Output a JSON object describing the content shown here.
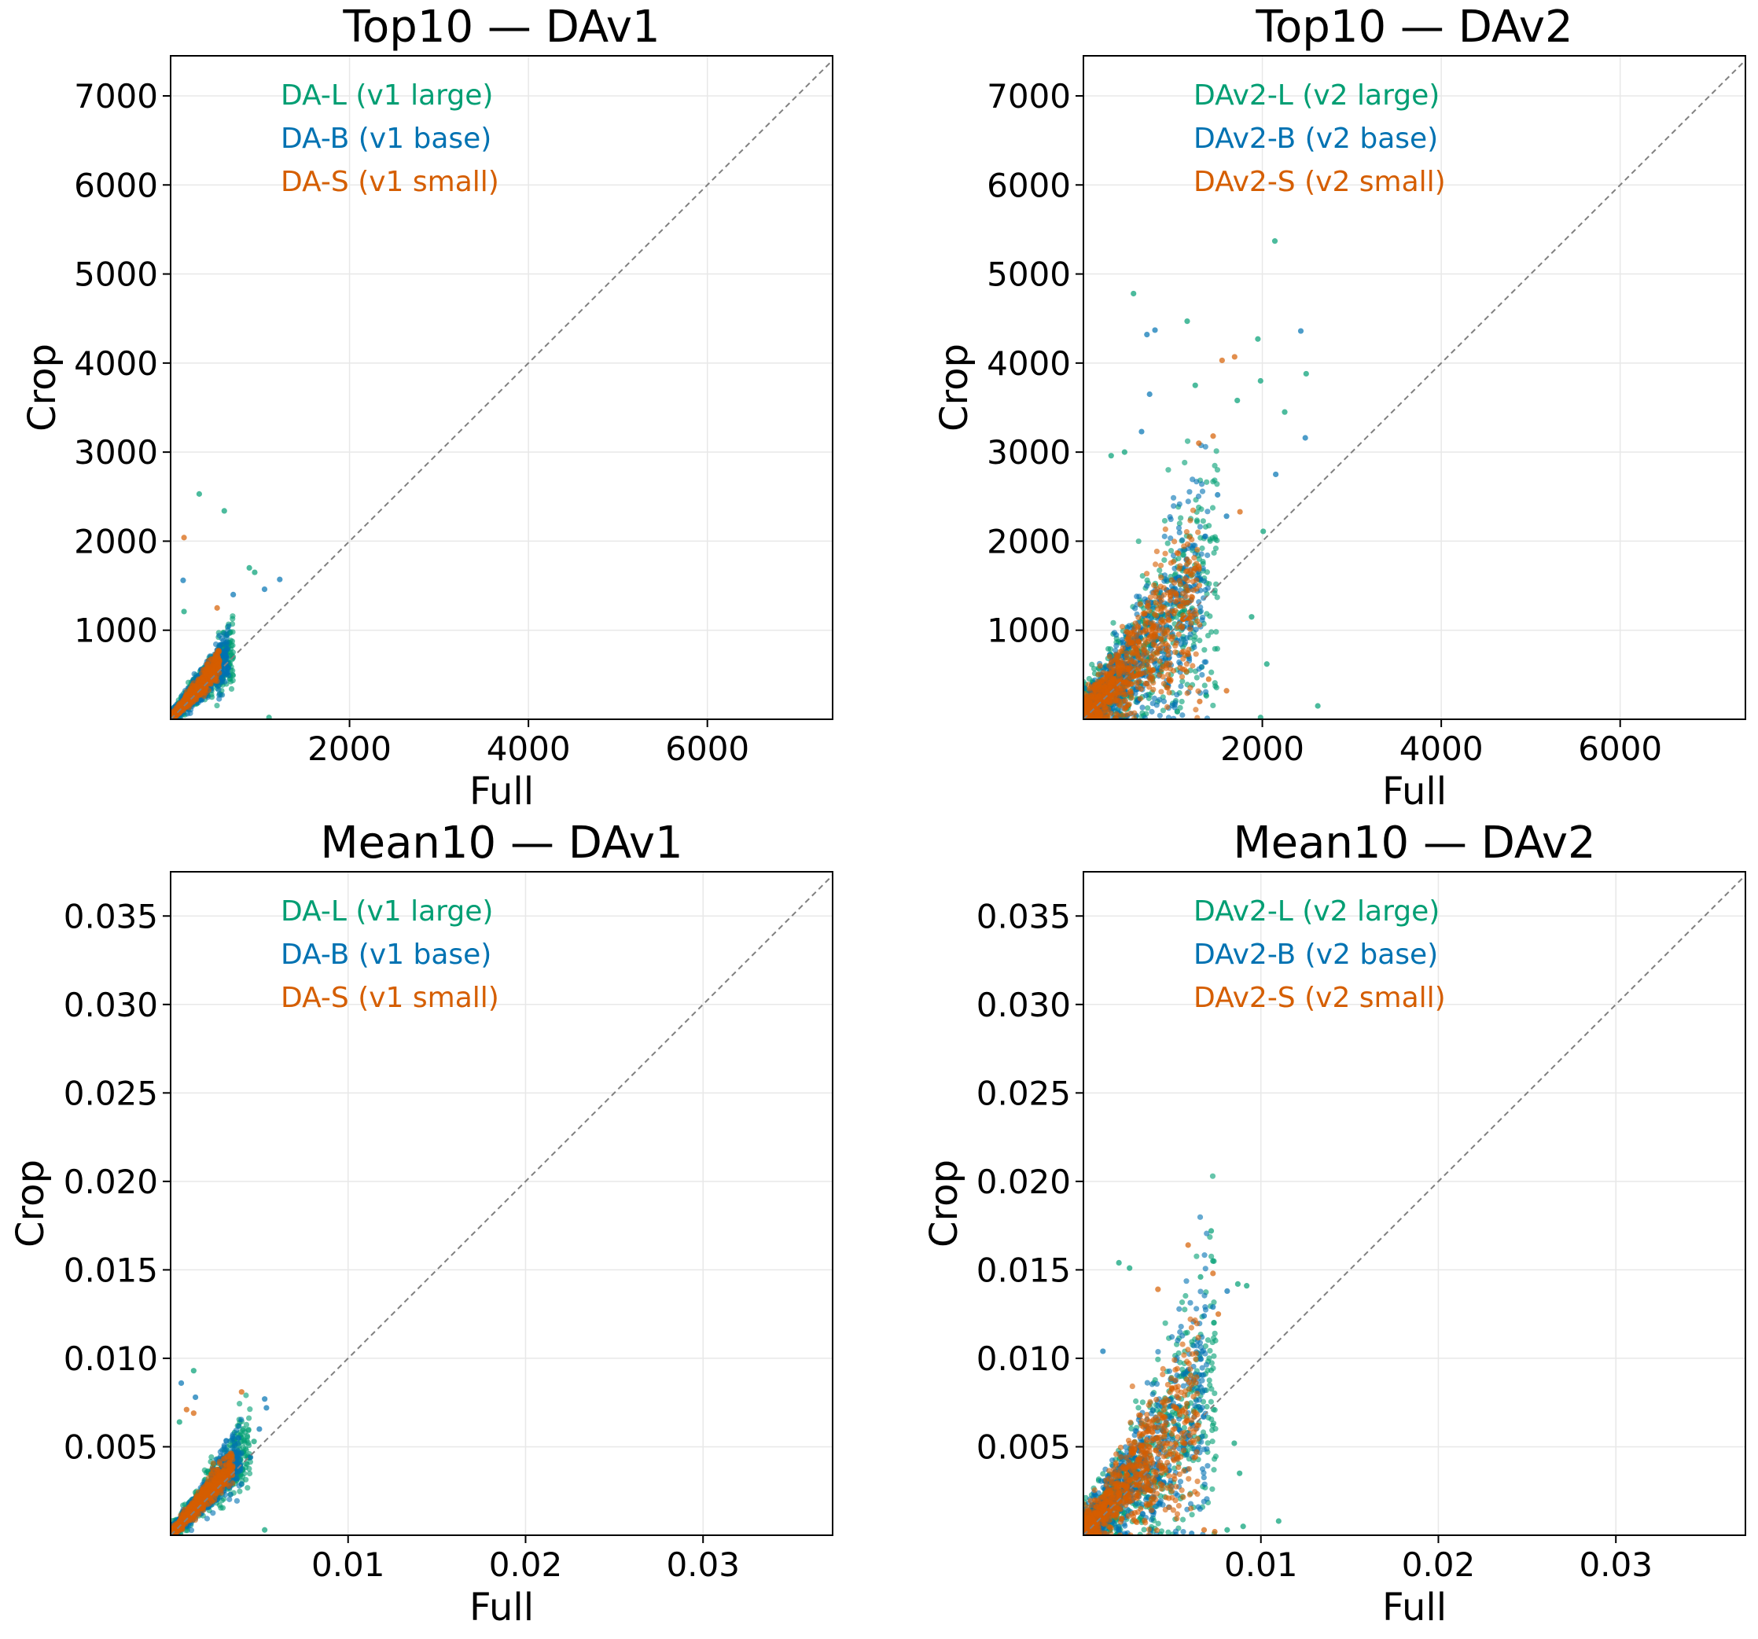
{
  "colors": {
    "large": "#009E73",
    "base": "#0072B2",
    "small": "#D55E00",
    "diagonal": "#808080",
    "grid": "#e8e8e8"
  },
  "chart_data": [
    {
      "type": "scatter",
      "title": "Top10 — DAv1",
      "xlabel": "Full",
      "ylabel": "Crop",
      "xlim": [
        0,
        7400
      ],
      "ylim": [
        0,
        7450
      ],
      "xticks": [
        2000,
        4000,
        6000
      ],
      "xtick_labels": [
        "2000",
        "4000",
        "6000"
      ],
      "yticks": [
        1000,
        2000,
        3000,
        4000,
        5000,
        6000,
        7000
      ],
      "ytick_labels": [
        "1000",
        "2000",
        "3000",
        "4000",
        "5000",
        "6000",
        "7000"
      ],
      "grid": true,
      "diagonal": "y = x (dashed)",
      "legend_position": "top-left",
      "series": [
        {
          "name": "DA-L (v1 large)",
          "color_key": "large",
          "cluster": {
            "xmax": 700,
            "spread": 0.45
          },
          "outliers": [
            [
              320,
              2530
            ],
            [
              600,
              2340
            ],
            [
              150,
              1210
            ],
            [
              880,
              1700
            ],
            [
              940,
              1650
            ],
            [
              1100,
              20
            ]
          ]
        },
        {
          "name": "DA-B (v1 base)",
          "color_key": "base",
          "cluster": {
            "xmax": 650,
            "spread": 0.42
          },
          "outliers": [
            [
              140,
              1560
            ],
            [
              1220,
              1570
            ],
            [
              1050,
              1460
            ],
            [
              700,
              1400
            ]
          ]
        },
        {
          "name": "DA-S (v1 small)",
          "color_key": "small",
          "cluster": {
            "xmax": 550,
            "spread": 0.28
          },
          "outliers": [
            [
              150,
              2040
            ],
            [
              520,
              1250
            ]
          ]
        }
      ]
    },
    {
      "type": "scatter",
      "title": "Top10 — DAv2",
      "xlabel": "Full",
      "ylabel": "Crop",
      "xlim": [
        0,
        7400
      ],
      "ylim": [
        0,
        7450
      ],
      "xticks": [
        2000,
        4000,
        6000
      ],
      "xtick_labels": [
        "2000",
        "4000",
        "6000"
      ],
      "yticks": [
        1000,
        2000,
        3000,
        4000,
        5000,
        6000,
        7000
      ],
      "ytick_labels": [
        "1000",
        "2000",
        "3000",
        "4000",
        "5000",
        "6000",
        "7000"
      ],
      "grid": true,
      "diagonal": "y = x (dashed)",
      "legend_position": "top-left",
      "series": [
        {
          "name": "DAv2-L (v2 large)",
          "color_key": "large",
          "cluster": {
            "xmax": 1500,
            "spread": 0.9
          },
          "outliers": [
            [
              2140,
              5370
            ],
            [
              560,
              4780
            ],
            [
              1160,
              4470
            ],
            [
              1950,
              4270
            ],
            [
              1250,
              3750
            ],
            [
              1980,
              3800
            ],
            [
              2250,
              3450
            ],
            [
              2490,
              3880
            ],
            [
              1720,
              3580
            ],
            [
              460,
              3000
            ],
            [
              310,
              2960
            ],
            [
              2010,
              2110
            ],
            [
              1880,
              1150
            ],
            [
              2050,
              620
            ],
            [
              2620,
              150
            ],
            [
              1980,
              20
            ]
          ]
        },
        {
          "name": "DAv2-B (v2 base)",
          "color_key": "base",
          "cluster": {
            "xmax": 1400,
            "spread": 0.85
          },
          "outliers": [
            [
              710,
              4320
            ],
            [
              800,
              4370
            ],
            [
              2430,
              4360
            ],
            [
              740,
              3650
            ],
            [
              2480,
              3160
            ],
            [
              2150,
              2750
            ],
            [
              650,
              3230
            ],
            [
              1500,
              2520
            ],
            [
              1600,
              2280
            ]
          ]
        },
        {
          "name": "DAv2-S (v2 small)",
          "color_key": "small",
          "cluster": {
            "xmax": 1300,
            "spread": 0.75
          },
          "outliers": [
            [
              1550,
              4030
            ],
            [
              1690,
              4070
            ],
            [
              1290,
              3100
            ],
            [
              1450,
              3180
            ],
            [
              1750,
              2330
            ],
            [
              1400,
              450
            ],
            [
              1600,
              320
            ],
            [
              1300,
              200
            ]
          ]
        }
      ]
    },
    {
      "type": "scatter",
      "title": "Mean10 — DAv1",
      "xlabel": "Full",
      "ylabel": "Crop",
      "xlim": [
        0,
        0.0373
      ],
      "ylim": [
        0,
        0.0375
      ],
      "xticks": [
        0.01,
        0.02,
        0.03
      ],
      "xtick_labels": [
        "0.01",
        "0.02",
        "0.03"
      ],
      "yticks": [
        0.005,
        0.01,
        0.015,
        0.02,
        0.025,
        0.03,
        0.035
      ],
      "ytick_labels": [
        "0.005",
        "0.010",
        "0.015",
        "0.020",
        "0.025",
        "0.030",
        "0.035"
      ],
      "grid": true,
      "diagonal": "y = x (dashed)",
      "legend_position": "top-left",
      "series": [
        {
          "name": "DA-L (v1 large)",
          "color_key": "large",
          "cluster": {
            "xmax": 0.0045,
            "spread": 0.42
          },
          "outliers": [
            [
              0.0013,
              0.0093
            ],
            [
              0.0005,
              0.0064
            ],
            [
              0.0036,
              0.0058
            ],
            [
              0.0047,
              0.0053
            ],
            [
              0.0053,
              0.0003
            ]
          ]
        },
        {
          "name": "DA-B (v1 base)",
          "color_key": "base",
          "cluster": {
            "xmax": 0.004,
            "spread": 0.4
          },
          "outliers": [
            [
              0.0053,
              0.0077
            ],
            [
              0.0054,
              0.0072
            ],
            [
              0.0006,
              0.0086
            ],
            [
              0.0014,
              0.0078
            ],
            [
              0.005,
              0.006
            ],
            [
              0.0045,
              0.0044
            ]
          ]
        },
        {
          "name": "DA-S (v1 small)",
          "color_key": "small",
          "cluster": {
            "xmax": 0.0035,
            "spread": 0.27
          },
          "outliers": [
            [
              0.004,
              0.0081
            ],
            [
              0.0013,
              0.0069
            ],
            [
              0.0009,
              0.0071
            ]
          ]
        }
      ]
    },
    {
      "type": "scatter",
      "title": "Mean10 — DAv2",
      "xlabel": "Full",
      "ylabel": "Crop",
      "xlim": [
        0,
        0.0373
      ],
      "ylim": [
        0,
        0.0375
      ],
      "xticks": [
        0.01,
        0.02,
        0.03
      ],
      "xtick_labels": [
        "0.01",
        "0.02",
        "0.03"
      ],
      "yticks": [
        0.005,
        0.01,
        0.015,
        0.02,
        0.025,
        0.03,
        0.035
      ],
      "ytick_labels": [
        "0.005",
        "0.010",
        "0.015",
        "0.020",
        "0.025",
        "0.030",
        "0.035"
      ],
      "grid": true,
      "diagonal": "y = x (dashed)",
      "legend_position": "top-left",
      "series": [
        {
          "name": "DAv2-L (v2 large)",
          "color_key": "large",
          "cluster": {
            "xmax": 0.0075,
            "spread": 0.85
          },
          "outliers": [
            [
              0.0072,
              0.0172
            ],
            [
              0.0073,
              0.0155
            ],
            [
              0.002,
              0.0154
            ],
            [
              0.0026,
              0.0151
            ],
            [
              0.0087,
              0.0142
            ],
            [
              0.0092,
              0.0141
            ],
            [
              0.0066,
              0.0146
            ],
            [
              0.0085,
              0.0052
            ],
            [
              0.0088,
              0.0035
            ],
            [
              0.009,
              0.0005
            ],
            [
              0.011,
              0.0008
            ],
            [
              0.0081,
              0.0003
            ]
          ]
        },
        {
          "name": "DAv2-B (v2 base)",
          "color_key": "base",
          "cluster": {
            "xmax": 0.007,
            "spread": 0.8
          },
          "outliers": [
            [
              0.0081,
              0.0138
            ],
            [
              0.0073,
              0.0129
            ],
            [
              0.0068,
              0.0124
            ],
            [
              0.0011,
              0.0104
            ],
            [
              0.0061,
              0.0001
            ]
          ]
        },
        {
          "name": "DAv2-S (v2 small)",
          "color_key": "small",
          "cluster": {
            "xmax": 0.0065,
            "spread": 0.72
          },
          "outliers": [
            [
              0.0059,
              0.0164
            ],
            [
              0.0073,
              0.0148
            ],
            [
              0.0076,
              0.0125
            ],
            [
              0.0042,
              0.0139
            ],
            [
              0.0068,
              0.0003
            ],
            [
              0.0074,
              0.0002
            ]
          ]
        }
      ]
    }
  ]
}
